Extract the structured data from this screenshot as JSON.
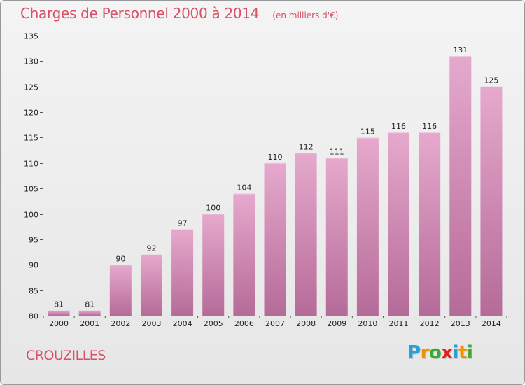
{
  "chart_data": {
    "type": "bar",
    "title": "Charges de Personnel 2000 à 2014",
    "unit_note": "(en milliers d'€)",
    "categories": [
      "2000",
      "2001",
      "2002",
      "2003",
      "2004",
      "2005",
      "2006",
      "2007",
      "2008",
      "2009",
      "2010",
      "2011",
      "2012",
      "2013",
      "2014"
    ],
    "values": [
      81,
      81,
      90,
      92,
      97,
      100,
      104,
      110,
      112,
      111,
      115,
      116,
      116,
      131,
      125
    ],
    "xlabel": "",
    "ylabel": "",
    "ylim": [
      80,
      135
    ],
    "yticks": [
      80,
      85,
      90,
      95,
      100,
      105,
      110,
      115,
      120,
      125,
      130,
      135
    ],
    "grid": false,
    "legend": "none"
  },
  "town_name": "CROUZILLES",
  "logo": {
    "text": "Proxiti",
    "letters": [
      "P",
      "r",
      "o",
      "x",
      "i",
      "t",
      "i"
    ],
    "colors": [
      "#2a9fd6",
      "#f39200",
      "#3aaa35",
      "#e2231a",
      "#2a9fd6",
      "#f39200",
      "#3aaa35"
    ]
  },
  "colors": {
    "title": "#d94f63",
    "bar_top": "#e6a9cd",
    "bar_bottom": "#b56b98",
    "axis": "#555555"
  }
}
